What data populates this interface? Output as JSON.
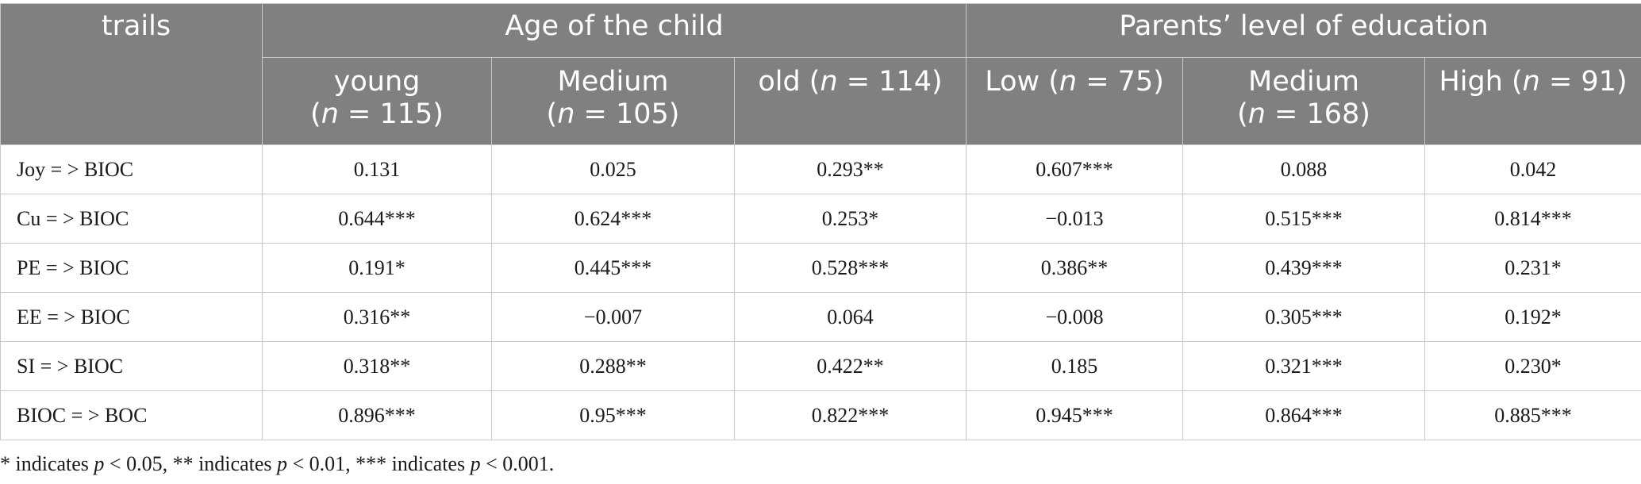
{
  "table": {
    "corner_label": "trails",
    "group_headers": [
      "Age of the child",
      "Parents’ level of education"
    ],
    "columns": [
      {
        "label": "young",
        "n_label": "(",
        "n_var": "n",
        "n_value": " = 115)",
        "wrap": true
      },
      {
        "label": "Medium",
        "n_label": "(",
        "n_var": "n",
        "n_value": " = 105)",
        "wrap": true
      },
      {
        "label": "old (",
        "n_label": "",
        "n_var": "n",
        "n_value": " = 114)",
        "wrap": false
      },
      {
        "label": "Low (",
        "n_label": "",
        "n_var": "n",
        "n_value": " = 75)",
        "wrap": false
      },
      {
        "label": "Medium",
        "n_label": "(",
        "n_var": "n",
        "n_value": " = 168)",
        "wrap": true
      },
      {
        "label": "High (",
        "n_label": "",
        "n_var": "n",
        "n_value": " = 91)",
        "wrap": false
      }
    ],
    "rows": [
      {
        "path": "Joy = > BIOC",
        "values": [
          "0.131",
          "0.025",
          "0.293**",
          "0.607***",
          "0.088",
          "0.042"
        ]
      },
      {
        "path": "Cu = > BIOC",
        "values": [
          "0.644***",
          "0.624***",
          "0.253*",
          "−0.013",
          "0.515***",
          "0.814***"
        ]
      },
      {
        "path": "PE = > BIOC",
        "values": [
          "0.191*",
          "0.445***",
          "0.528***",
          "0.386**",
          "0.439***",
          "0.231*"
        ]
      },
      {
        "path": "EE = > BIOC",
        "values": [
          "0.316**",
          "−0.007",
          "0.064",
          "−0.008",
          "0.305***",
          "0.192*"
        ]
      },
      {
        "path": "SI = > BIOC",
        "values": [
          "0.318**",
          "0.288**",
          "0.422**",
          "0.185",
          "0.321***",
          "0.230*"
        ]
      },
      {
        "path": "BIOC = > BOC",
        "values": [
          "0.896***",
          "0.95***",
          "0.822***",
          "0.945***",
          "0.864***",
          "0.885***"
        ]
      }
    ]
  },
  "footnote": {
    "part1": "* indicates ",
    "p1": "p",
    "part2": " < 0.05, ** indicates ",
    "p2": "p",
    "part3": " < 0.01, *** indicates ",
    "p3": "p",
    "part4": " < 0.001."
  },
  "colors": {
    "header_bg": "#808080",
    "header_text": "#ffffff",
    "border": "#c8c8c8"
  }
}
